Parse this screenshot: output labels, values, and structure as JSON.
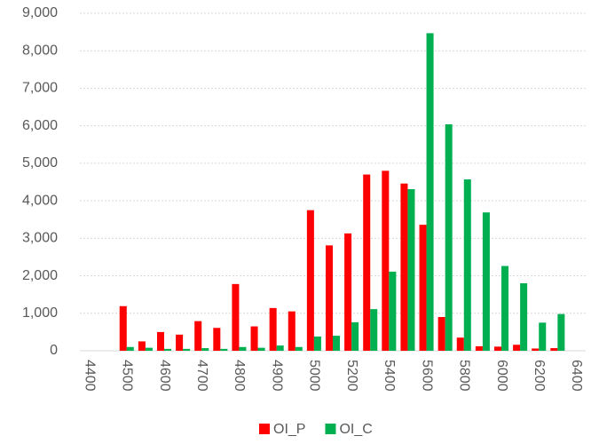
{
  "chart_data": {
    "type": "bar",
    "categories": [
      "4400",
      null,
      "4500",
      null,
      "4600",
      null,
      "4700",
      null,
      "4800",
      null,
      "4900",
      null,
      "5000",
      null,
      "5200",
      null,
      "5400",
      null,
      "5600",
      null,
      "5800",
      null,
      "6000",
      null,
      "6200",
      null,
      "6400"
    ],
    "series": [
      {
        "name": "OI_P",
        "color": "#ff0000",
        "values": [
          null,
          null,
          1190,
          250,
          500,
          430,
          790,
          610,
          1780,
          650,
          1140,
          1050,
          3750,
          2810,
          3130,
          4700,
          4800,
          4460,
          3360,
          900,
          350,
          120,
          110,
          160,
          60,
          70,
          null
        ]
      },
      {
        "name": "OI_C",
        "color": "#00b050",
        "values": [
          null,
          null,
          100,
          80,
          50,
          50,
          70,
          50,
          100,
          80,
          140,
          100,
          380,
          400,
          760,
          1110,
          2110,
          4310,
          8470,
          6040,
          4570,
          3690,
          2260,
          1800,
          750,
          980,
          null
        ]
      }
    ],
    "ylim": [
      0,
      9000
    ],
    "yticks": [
      0,
      {
        "value": 1000,
        "label": "1,000"
      },
      {
        "value": 2000,
        "label": "2,000"
      },
      {
        "value": 3000,
        "label": "3,000"
      },
      {
        "value": 4000,
        "label": "4,000"
      },
      {
        "value": 5000,
        "label": "5,000"
      },
      {
        "value": 6000,
        "label": "6,000"
      },
      {
        "value": 7000,
        "label": "7,000"
      },
      {
        "value": 8000,
        "label": "8,000"
      },
      {
        "value": 9000,
        "label": "9,000"
      }
    ],
    "grid": true,
    "legend": "bottom"
  }
}
